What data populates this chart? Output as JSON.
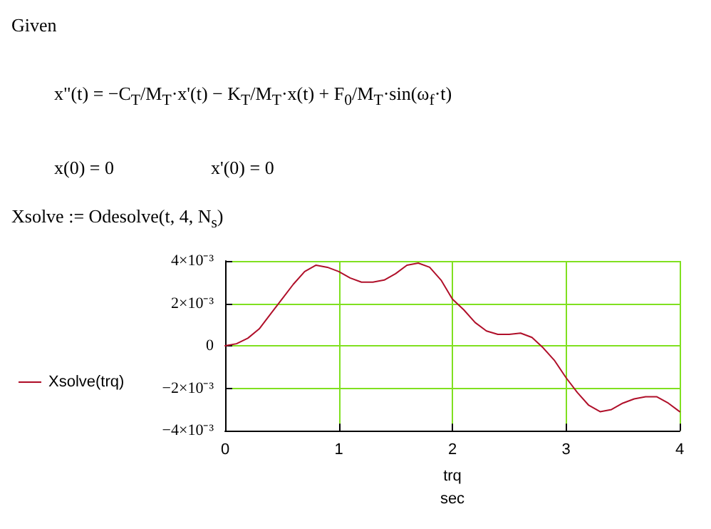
{
  "chart_data": {
    "type": "line",
    "annotations": [
      "Given",
      "x\"(t) = −C$_{T}$/M$_{T}$·x'(t) − K$_{T}$/M$_{T}$·x(t) + F$_{0}$/M$_{T}$·sin(ω$_{f}$·t)",
      "x(0) = 0",
      "x'(0) = 0",
      "Xsolve := Odesolve(t, 4, N$_{s}$)"
    ],
    "xlabel": "trq\nsec",
    "x": [
      0,
      0.1,
      0.2,
      0.3,
      0.4,
      0.5,
      0.6,
      0.7,
      0.8,
      0.9,
      1.0,
      1.1,
      1.2,
      1.3,
      1.4,
      1.5,
      1.6,
      1.7,
      1.8,
      1.9,
      2.0,
      2.1,
      2.2,
      2.3,
      2.4,
      2.5,
      2.6,
      2.7,
      2.8,
      2.9,
      3.0,
      3.1,
      3.2,
      3.3,
      3.4,
      3.5,
      3.6,
      3.7,
      3.8,
      3.9,
      4.0
    ],
    "series": [
      {
        "name": "Xsolve(trq)",
        "color": "#b0102a",
        "values": [
          0,
          0.0001,
          0.00036,
          0.0008,
          0.0015,
          0.0022,
          0.0029,
          0.0035,
          0.0038,
          0.0037,
          0.0035,
          0.0032,
          0.003,
          0.003,
          0.0031,
          0.0034,
          0.0038,
          0.0039,
          0.0037,
          0.0031,
          0.0022,
          0.0017,
          0.0011,
          0.0007,
          0.00054,
          0.00054,
          0.0006,
          0.0004,
          -0.0001,
          -0.0007,
          -0.0015,
          -0.0022,
          -0.0028,
          -0.0031,
          -0.003,
          -0.0027,
          -0.0025,
          -0.0024,
          -0.0024,
          -0.0027,
          -0.0031
        ]
      }
    ],
    "xlim": [
      0,
      4
    ],
    "xticks": [
      0,
      1,
      2,
      3,
      4
    ],
    "ylim": [
      -0.004,
      0.004
    ],
    "yticks": [
      {
        "value": -0.004,
        "label": "−4×10⁻³"
      },
      {
        "value": -0.002,
        "label": "−2×10⁻³"
      },
      0,
      {
        "value": 0.002,
        "label": "2×10⁻³"
      },
      {
        "value": 0.004,
        "label": "4×10⁻³"
      }
    ],
    "grid": true,
    "legend": "left",
    "marker": "none",
    "line_style": "solid"
  }
}
